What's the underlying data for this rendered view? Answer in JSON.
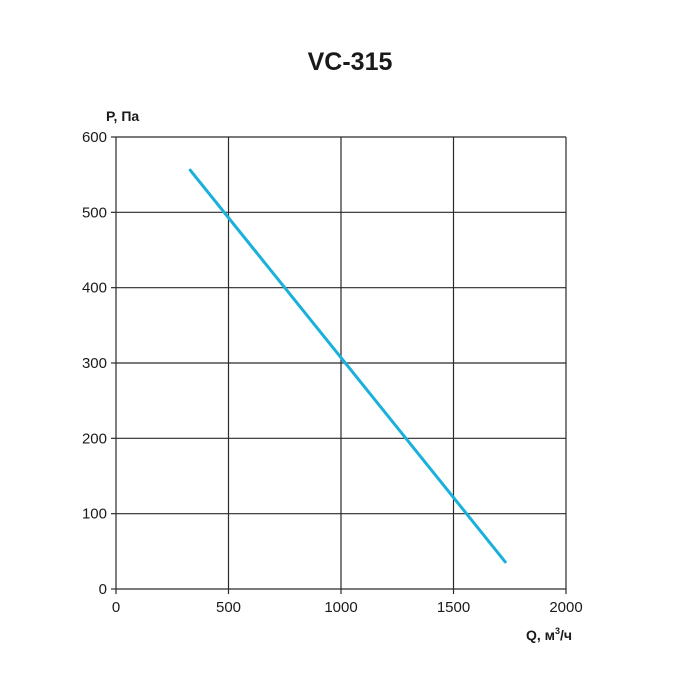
{
  "chart_data": {
    "type": "line",
    "title": "VC-315",
    "ylabel": "P, Па",
    "xlabel_main": "Q, м",
    "xlabel_sup": "3",
    "xlabel_tail": "/ч",
    "xlim": [
      0,
      2000
    ],
    "ylim": [
      0,
      600
    ],
    "x_ticks": [
      0,
      500,
      1000,
      1500,
      2000
    ],
    "y_ticks": [
      0,
      100,
      200,
      300,
      400,
      500,
      600
    ],
    "grid": true,
    "series": [
      {
        "color": "#1ab0dc",
        "x": [
          330,
          1730
        ],
        "y": [
          556,
          36
        ]
      }
    ]
  }
}
